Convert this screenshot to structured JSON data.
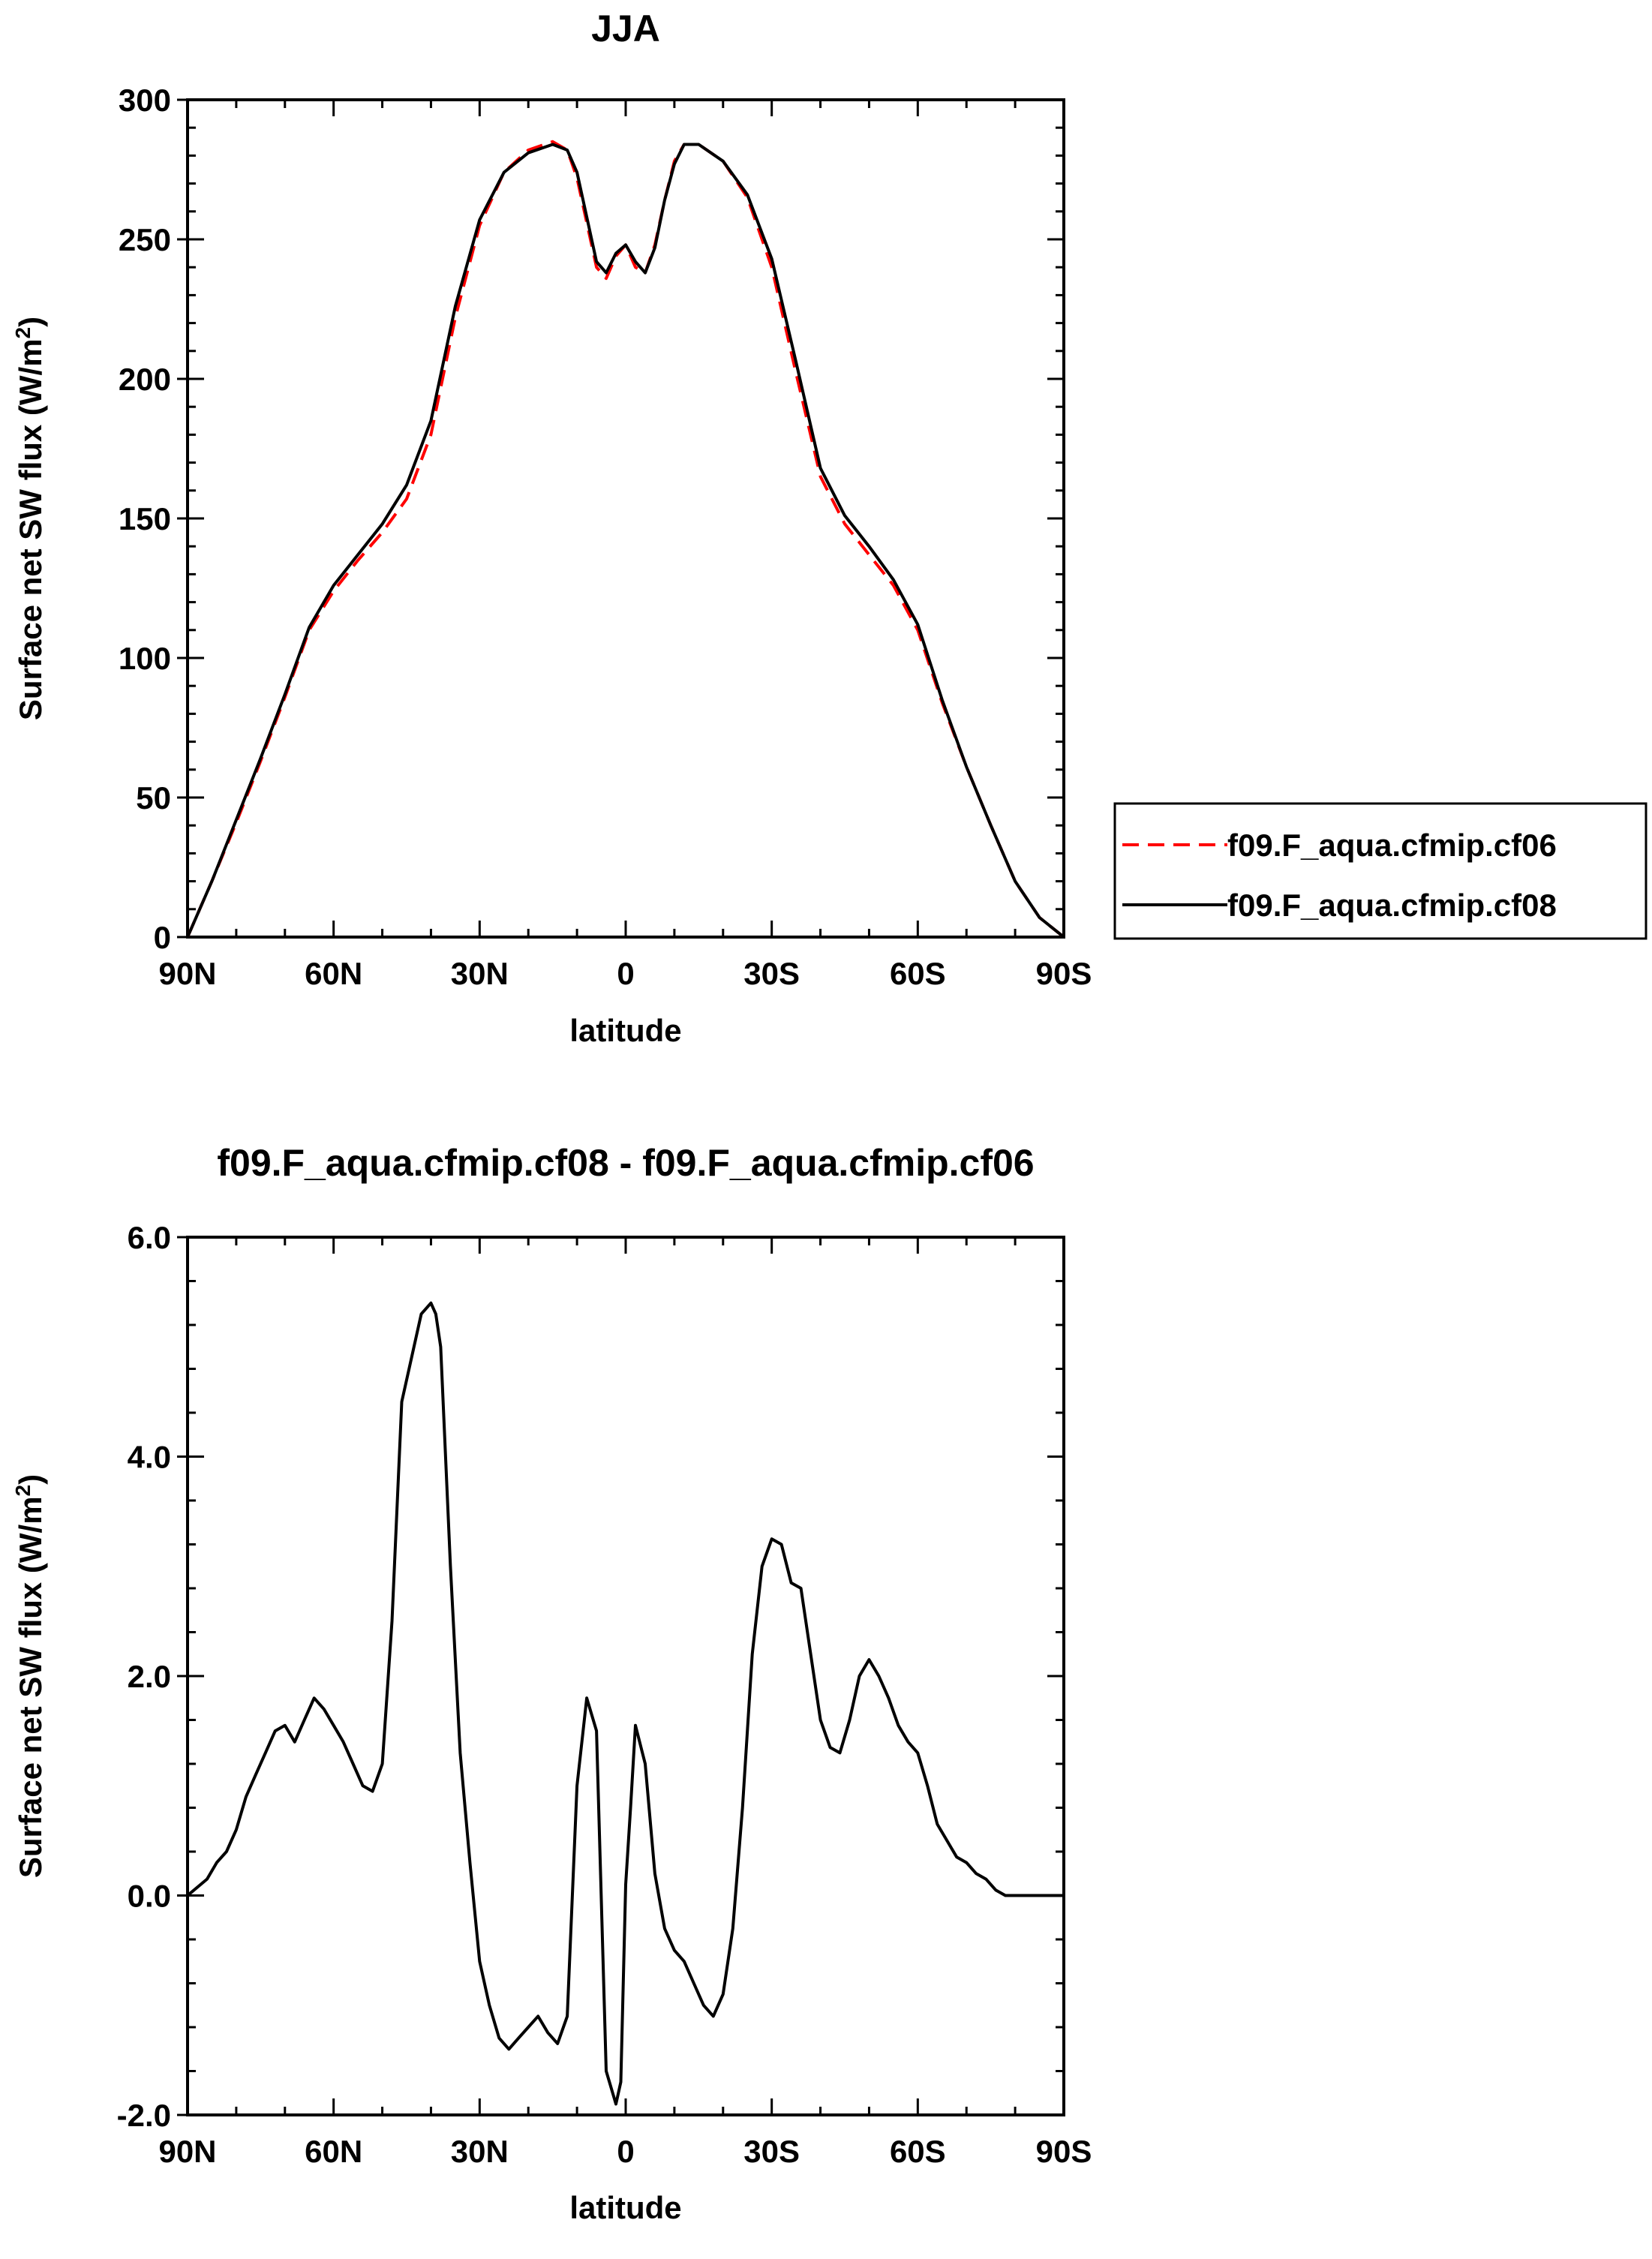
{
  "chart_data": [
    {
      "type": "line",
      "title": "JJA",
      "xlabel": "latitude",
      "ylabel": "Surface net SW flux (W/m",
      "ylabel_sup": "2",
      "ylabel_close": ")",
      "xlim": [
        90,
        -90
      ],
      "ylim": [
        0,
        300
      ],
      "x_ticks": [
        90,
        60,
        30,
        0,
        -30,
        -60,
        -90
      ],
      "x_tick_labels": [
        "90N",
        "60N",
        "30N",
        "0",
        "30S",
        "60S",
        "90S"
      ],
      "y_ticks": [
        0,
        50,
        100,
        150,
        200,
        250,
        300
      ],
      "y_tick_labels": [
        "0",
        "50",
        "100",
        "150",
        "200",
        "250",
        "300"
      ],
      "legend_position": "right",
      "series": [
        {
          "name": "f09.F_aqua.cfmip.cf06",
          "color": "#ff0000",
          "dash": "dashed",
          "x": [
            90,
            85,
            80,
            75,
            70,
            65,
            60,
            55,
            50,
            45,
            40,
            35,
            30,
            25,
            20,
            15,
            12,
            10,
            8,
            6,
            4,
            2,
            0,
            -2,
            -4,
            -6,
            -8,
            -10,
            -12,
            -15,
            -20,
            -25,
            -30,
            -35,
            -40,
            -45,
            -50,
            -55,
            -60,
            -65,
            -70,
            -75,
            -80,
            -85,
            -90
          ],
          "y": [
            0,
            20,
            41,
            63,
            86,
            110,
            124,
            135,
            145,
            157,
            180,
            222,
            255,
            274,
            282,
            285,
            282,
            272,
            256,
            240,
            236,
            244,
            248,
            240,
            238,
            248,
            264,
            278,
            284,
            284,
            278,
            265,
            240,
            202,
            165,
            148,
            137,
            126,
            110,
            84,
            61,
            40,
            20,
            7,
            0
          ]
        },
        {
          "name": "f09.F_aqua.cfmip.cf08",
          "color": "#000000",
          "dash": "solid",
          "x": [
            90,
            85,
            80,
            75,
            70,
            65,
            60,
            55,
            50,
            45,
            40,
            35,
            30,
            25,
            20,
            15,
            12,
            10,
            8,
            6,
            4,
            2,
            0,
            -2,
            -4,
            -6,
            -8,
            -10,
            -12,
            -15,
            -20,
            -25,
            -30,
            -35,
            -40,
            -45,
            -50,
            -55,
            -60,
            -65,
            -70,
            -75,
            -80,
            -85,
            -90
          ],
          "y": [
            0,
            20,
            42,
            64,
            87,
            111,
            126,
            137,
            148,
            162,
            185,
            226,
            257,
            274,
            281,
            284,
            282,
            274,
            258,
            242,
            238,
            245,
            248,
            242,
            238,
            247,
            264,
            277,
            284,
            284,
            278,
            266,
            243,
            206,
            168,
            151,
            140,
            128,
            112,
            85,
            61,
            40,
            20,
            7,
            0
          ]
        }
      ]
    },
    {
      "type": "line",
      "title": "f09.F_aqua.cfmip.cf08 - f09.F_aqua.cfmip.cf06",
      "xlabel": "latitude",
      "ylabel": "Surface net SW flux (W/m",
      "ylabel_sup": "2",
      "ylabel_close": ")",
      "xlim": [
        90,
        -90
      ],
      "ylim": [
        -2.0,
        6.0
      ],
      "x_ticks": [
        90,
        60,
        30,
        0,
        -30,
        -60,
        -90
      ],
      "x_tick_labels": [
        "90N",
        "60N",
        "30N",
        "0",
        "30S",
        "60S",
        "90S"
      ],
      "y_ticks": [
        -2,
        0,
        2,
        4,
        6
      ],
      "y_tick_labels": [
        "-2.0",
        "0.0",
        "2.0",
        "4.0",
        "6.0"
      ],
      "series": [
        {
          "color": "#000000",
          "dash": "solid",
          "x": [
            90,
            86,
            84,
            82,
            80,
            78,
            76,
            74,
            72,
            70,
            68,
            66,
            64,
            62,
            60,
            58,
            56,
            54,
            52,
            50,
            48,
            46,
            44,
            42,
            40,
            39,
            38,
            36,
            34,
            32,
            30,
            28,
            26,
            24,
            22,
            20,
            18,
            16,
            14,
            12,
            10,
            8,
            6,
            4,
            2,
            1,
            0,
            -1,
            -2,
            -4,
            -6,
            -8,
            -10,
            -12,
            -14,
            -16,
            -18,
            -20,
            -22,
            -24,
            -26,
            -28,
            -30,
            -32,
            -34,
            -36,
            -38,
            -40,
            -42,
            -44,
            -46,
            -48,
            -50,
            -52,
            -54,
            -56,
            -58,
            -60,
            -62,
            -64,
            -66,
            -68,
            -70,
            -72,
            -74,
            -76,
            -78,
            -80,
            -82,
            -84,
            -86,
            -88,
            -90
          ],
          "y": [
            0.0,
            0.15,
            0.3,
            0.4,
            0.6,
            0.9,
            1.1,
            1.3,
            1.5,
            1.55,
            1.4,
            1.6,
            1.8,
            1.7,
            1.55,
            1.4,
            1.2,
            1.0,
            0.95,
            1.2,
            2.5,
            4.5,
            4.9,
            5.3,
            5.4,
            5.3,
            5.0,
            3.0,
            1.3,
            0.3,
            -0.6,
            -1.0,
            -1.3,
            -1.4,
            -1.3,
            -1.2,
            -1.1,
            -1.25,
            -1.35,
            -1.1,
            1.0,
            1.8,
            1.5,
            -1.6,
            -1.9,
            -1.7,
            0.1,
            0.8,
            1.55,
            1.2,
            0.2,
            -0.3,
            -0.5,
            -0.6,
            -0.8,
            -1.0,
            -1.1,
            -0.9,
            -0.3,
            0.8,
            2.2,
            3.0,
            3.25,
            3.2,
            2.85,
            2.8,
            2.2,
            1.6,
            1.35,
            1.3,
            1.6,
            2.0,
            2.15,
            2.0,
            1.8,
            1.55,
            1.4,
            1.3,
            1.0,
            0.65,
            0.5,
            0.35,
            0.3,
            0.2,
            0.15,
            0.05,
            0.0,
            0.0,
            0.0,
            0.0,
            0.0,
            0.0,
            0.0
          ]
        }
      ]
    }
  ]
}
